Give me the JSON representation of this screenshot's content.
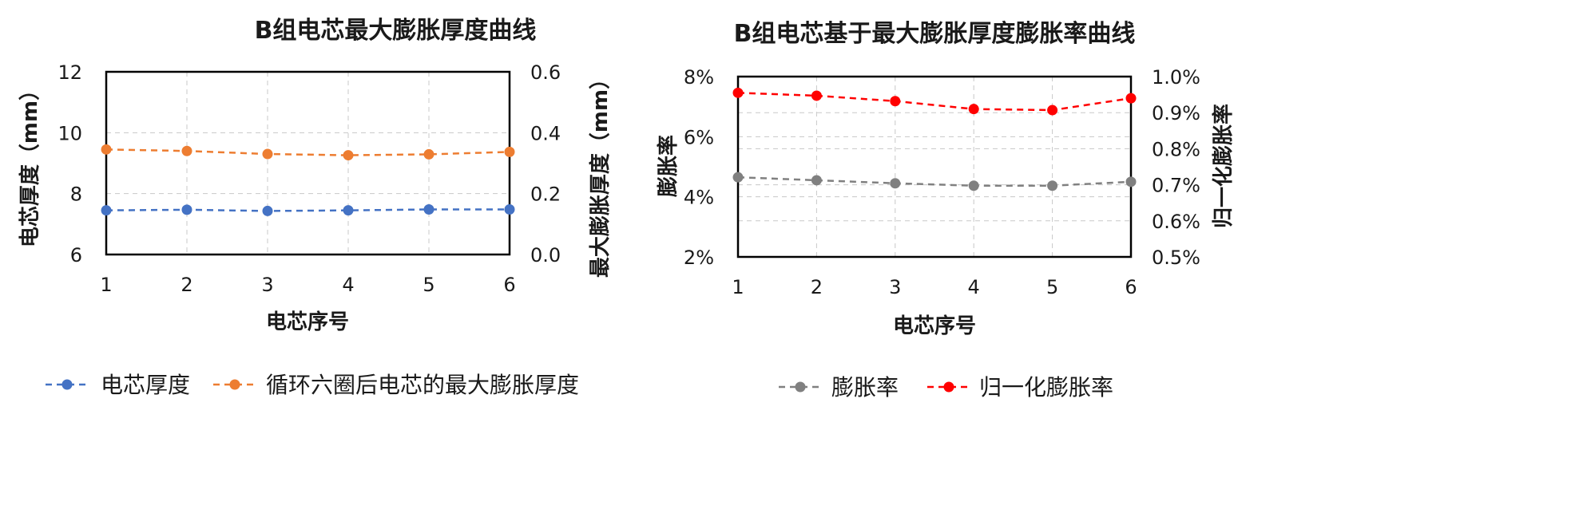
{
  "chart_data": [
    {
      "type": "line",
      "title": "B组电芯最大膨胀厚度曲线",
      "xlabel": "电芯序号",
      "ylabel": "电芯厚度（mm）",
      "y2label": "最大膨胀厚度（mm）",
      "categories": [
        "1",
        "2",
        "3",
        "4",
        "5",
        "6"
      ],
      "ylim": [
        6,
        12
      ],
      "yticks": [
        "6",
        "8",
        "10",
        "12"
      ],
      "y2lim": [
        0.0,
        0.6
      ],
      "y2ticks": [
        "0.0",
        "0.2",
        "0.4",
        "0.6"
      ],
      "grid": true,
      "legend_position": "bottom",
      "series": [
        {
          "name": "电芯厚度",
          "axis": "left",
          "color": "#4472C4",
          "values": [
            7.45,
            7.47,
            7.43,
            7.45,
            7.48,
            7.48
          ]
        },
        {
          "name": "循环六圈后电芯的最大膨胀厚度",
          "axis": "right",
          "color": "#ED7D31",
          "values": [
            0.345,
            0.34,
            0.33,
            0.326,
            0.329,
            0.337
          ]
        }
      ]
    },
    {
      "type": "line",
      "title": "B组电芯基于最大膨胀厚度膨胀率曲线",
      "xlabel": "电芯序号",
      "ylabel": "膨胀率",
      "y2label": "归一化膨胀率",
      "categories": [
        "1",
        "2",
        "3",
        "4",
        "5",
        "6"
      ],
      "ylim": [
        2,
        8
      ],
      "yticks": [
        "2%",
        "4%",
        "6%",
        "8%"
      ],
      "y2lim": [
        0.5,
        1.0
      ],
      "y2ticks": [
        "0.5%",
        "0.6%",
        "0.7%",
        "0.8%",
        "0.9%",
        "1.0%"
      ],
      "grid": true,
      "legend_position": "bottom",
      "series": [
        {
          "name": "膨胀率",
          "axis": "left",
          "color": "#808080",
          "values": [
            4.65,
            4.55,
            4.45,
            4.37,
            4.37,
            4.5
          ]
        },
        {
          "name": "归一化膨胀率",
          "axis": "right",
          "color": "#FF0000",
          "values": [
            0.955,
            0.947,
            0.932,
            0.91,
            0.907,
            0.94
          ]
        }
      ]
    }
  ]
}
